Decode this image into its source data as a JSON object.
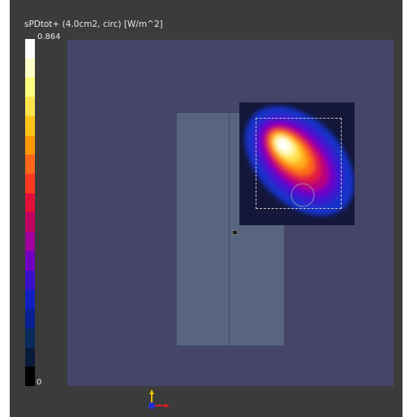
{
  "viewer": {
    "title": "sPDtot+ (4.0cm2, circ) [W/m^2]"
  },
  "legend": {
    "max_label": "0.864",
    "min_label": "0",
    "colors": [
      "#ffffff",
      "#ffffc8",
      "#ffff80",
      "#ffe64d",
      "#ffc41a",
      "#ff9900",
      "#ff661a",
      "#ff3a1f",
      "#e0103a",
      "#c00060",
      "#a0009c",
      "#7000c0",
      "#3a10c8",
      "#1020c0",
      "#0a2090",
      "#0a2a5c",
      "#0a1a3a",
      "#000000"
    ]
  },
  "scene": {
    "background_color": "#45456a",
    "axes_icon": "xyz-axes-icon"
  }
}
